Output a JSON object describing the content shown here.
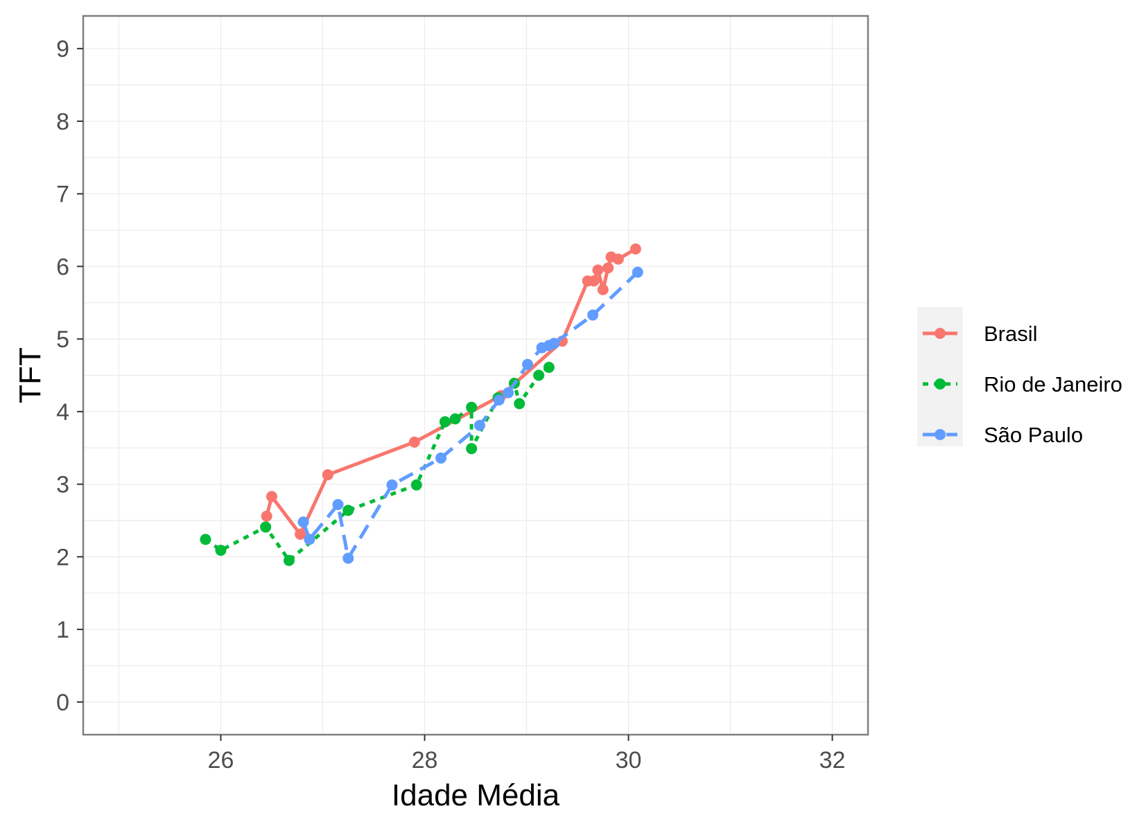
{
  "chart_data": {
    "type": "line",
    "xlabel": "Idade Média",
    "ylabel": "TFT",
    "xlim": [
      24.65,
      32.35
    ],
    "ylim": [
      -0.45,
      9.45
    ],
    "x_ticks": [
      26,
      28,
      30,
      32
    ],
    "y_ticks": [
      0,
      1,
      2,
      3,
      4,
      5,
      6,
      7,
      8,
      9
    ],
    "grid": true,
    "legend_position": "right",
    "series": [
      {
        "name": "Brasil",
        "color": "#F8766D",
        "dash": "solid",
        "points": [
          [
            26.45,
            2.56
          ],
          [
            26.5,
            2.83
          ],
          [
            26.78,
            2.31
          ],
          [
            27.05,
            3.13
          ],
          [
            27.9,
            3.58
          ],
          [
            28.75,
            4.22
          ],
          [
            29.35,
            4.97
          ],
          [
            29.6,
            5.8
          ],
          [
            29.66,
            5.8
          ],
          [
            29.7,
            5.95
          ],
          [
            29.75,
            5.68
          ],
          [
            29.8,
            5.98
          ],
          [
            29.83,
            6.13
          ],
          [
            29.9,
            6.1
          ],
          [
            30.07,
            6.24
          ]
        ]
      },
      {
        "name": "Rio de Janeiro",
        "color": "#00BA38",
        "dash": "dotted",
        "points": [
          [
            25.85,
            2.24
          ],
          [
            26.0,
            2.09
          ],
          [
            26.44,
            2.41
          ],
          [
            26.67,
            1.95
          ],
          [
            27.25,
            2.64
          ],
          [
            27.92,
            2.99
          ],
          [
            28.2,
            3.86
          ],
          [
            28.3,
            3.9
          ],
          [
            28.46,
            4.06
          ],
          [
            28.46,
            3.49
          ],
          [
            28.72,
            4.19
          ],
          [
            28.88,
            4.39
          ],
          [
            28.93,
            4.11
          ],
          [
            29.12,
            4.5
          ],
          [
            29.22,
            4.61
          ]
        ]
      },
      {
        "name": "São Paulo",
        "color": "#619CFF",
        "dash": "dashed",
        "points": [
          [
            26.81,
            2.48
          ],
          [
            26.87,
            2.24
          ],
          [
            27.15,
            2.72
          ],
          [
            27.25,
            1.98
          ],
          [
            27.68,
            2.99
          ],
          [
            28.16,
            3.36
          ],
          [
            28.54,
            3.81
          ],
          [
            28.73,
            4.16
          ],
          [
            28.82,
            4.26
          ],
          [
            29.01,
            4.65
          ],
          [
            29.15,
            4.88
          ],
          [
            29.22,
            4.91
          ],
          [
            29.27,
            4.94
          ],
          [
            29.65,
            5.33
          ],
          [
            30.09,
            5.92
          ]
        ]
      }
    ]
  }
}
